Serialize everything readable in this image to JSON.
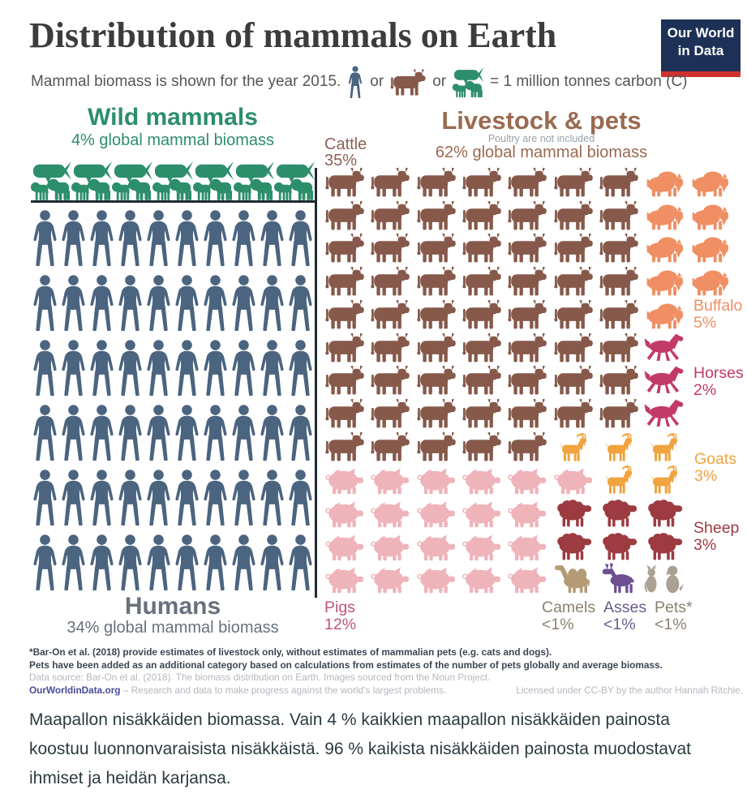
{
  "colors": {
    "title": "#3c3c3c",
    "subtitle_text": "#565656",
    "wild_green": "#2d8e6b",
    "human_blue": "#4b6480",
    "humans_gray": "#68717d",
    "livestock_brown": "#9a6a50",
    "cattle_label": "#8a6156",
    "note_gray": "#9aa0a6",
    "cow": "#86594a",
    "buffalo": "#f08f63",
    "horse": "#c23a68",
    "goat": "#f0a33e",
    "sheep": "#9c3b40",
    "pig": "#efb3ba",
    "pig_label": "#c05579",
    "camel": "#b49b76",
    "ass": "#6d4f92",
    "pets": "#aaa093",
    "muted_label": "#8b8174",
    "ass_label": "#6b5a8e",
    "logo_bg": "#1d3156",
    "logo_red": "#d0312d",
    "footnote_dark": "#3d4554",
    "footnote_light": "#b6b6bf",
    "owid_link": "#474b9b",
    "caption": "#2b3a40",
    "line": "#1f2a33"
  },
  "header": {
    "title": "Distribution of mammals on Earth",
    "logo_line1": "Our World",
    "logo_line2": "in Data",
    "subtitle_prefix": "Mammal biomass is shown for the year 2015.",
    "subtitle_or1": "or",
    "subtitle_or2": "or",
    "subtitle_suffix": "= 1 million tonnes carbon (C)"
  },
  "wild": {
    "title": "Wild mammals",
    "subtitle": "4% global mammal biomass",
    "units": 7
  },
  "humans": {
    "title": "Humans",
    "subtitle": "34% global mammal biomass",
    "rows": 6,
    "cols": 10
  },
  "livestock": {
    "title": "Livestock & pets",
    "note": "Poultry are not included",
    "subtitle": "62% global mammal biomass",
    "rows": [
      [
        "cow",
        "cow",
        "cow",
        "cow",
        "cow",
        "cow",
        "cow",
        "buffalo",
        "buffalo"
      ],
      [
        "cow",
        "cow",
        "cow",
        "cow",
        "cow",
        "cow",
        "cow",
        "buffalo",
        "buffalo"
      ],
      [
        "cow",
        "cow",
        "cow",
        "cow",
        "cow",
        "cow",
        "cow",
        "buffalo",
        "buffalo"
      ],
      [
        "cow",
        "cow",
        "cow",
        "cow",
        "cow",
        "cow",
        "cow",
        "buffalo",
        "buffalo"
      ],
      [
        "cow",
        "cow",
        "cow",
        "cow",
        "cow",
        "cow",
        "cow",
        "buffalo"
      ],
      [
        "cow",
        "cow",
        "cow",
        "cow",
        "cow",
        "cow",
        "cow",
        "horse"
      ],
      [
        "cow",
        "cow",
        "cow",
        "cow",
        "cow",
        "cow",
        "cow",
        "horse"
      ],
      [
        "cow",
        "cow",
        "cow",
        "cow",
        "cow",
        "cow",
        "cow",
        "horse"
      ],
      [
        "cow",
        "cow",
        "cow",
        "cow",
        "cow",
        "goat",
        "goat",
        "goat"
      ],
      [
        "pig",
        "pig",
        "pig",
        "pig",
        "pig",
        "pig",
        "goat",
        "goat"
      ],
      [
        "pig",
        "pig",
        "pig",
        "pig",
        "pig",
        "sheep",
        "sheep",
        "sheep"
      ],
      [
        "pig",
        "pig",
        "pig",
        "pig",
        "pig",
        "sheep",
        "sheep",
        "sheep"
      ],
      [
        "pig",
        "pig",
        "pig",
        "pig",
        "pig",
        "camel",
        "ass",
        "pets"
      ]
    ],
    "labels": {
      "cattle": {
        "text": "Cattle",
        "pct": "35%"
      },
      "buffalo": {
        "text": "Buffalo",
        "pct": "5%"
      },
      "horses": {
        "text": "Horses",
        "pct": "2%"
      },
      "goats": {
        "text": "Goats",
        "pct": "3%"
      },
      "sheep": {
        "text": "Sheep",
        "pct": "3%"
      },
      "pigs": {
        "text": "Pigs",
        "pct": "12%"
      },
      "camels": {
        "text": "Camels",
        "pct": "<1%"
      },
      "asses": {
        "text": "Asses",
        "pct": "<1%"
      },
      "pets": {
        "text": "Pets*",
        "pct": "<1%"
      }
    }
  },
  "chart_data": {
    "type": "pictogram",
    "title": "Distribution of mammals on Earth",
    "subtitle": "Mammal biomass is shown for the year 2015.",
    "unit_definition": "1 icon = 1 million tonnes carbon (C)",
    "groups": [
      {
        "name": "Wild mammals",
        "share_label": "4% global mammal biomass",
        "share_pct": 4,
        "icon_count": 7
      },
      {
        "name": "Humans",
        "share_label": "34% global mammal biomass",
        "share_pct": 34,
        "icon_count": 60
      },
      {
        "name": "Livestock & pets",
        "share_label": "62% global mammal biomass",
        "share_pct": 62,
        "note": "Poultry are not included",
        "icon_count": 108,
        "categories": [
          {
            "label": "Cattle",
            "pct_label": "35%",
            "icon_count": 61
          },
          {
            "label": "Buffalo",
            "pct_label": "5%",
            "icon_count": 9
          },
          {
            "label": "Horses",
            "pct_label": "2%",
            "icon_count": 3
          },
          {
            "label": "Goats",
            "pct_label": "3%",
            "icon_count": 5
          },
          {
            "label": "Sheep",
            "pct_label": "3%",
            "icon_count": 6
          },
          {
            "label": "Pigs",
            "pct_label": "12%",
            "icon_count": 21
          },
          {
            "label": "Camels",
            "pct_label": "<1%",
            "icon_count": 1
          },
          {
            "label": "Asses",
            "pct_label": "<1%",
            "icon_count": 1
          },
          {
            "label": "Pets*",
            "pct_label": "<1%",
            "icon_count": 1
          }
        ]
      }
    ]
  },
  "footer": {
    "note1": "*Bar-On et al. (2018) provide estimates of livestock only, without estimates of mammalian pets (e.g. cats and dogs).",
    "note2": "Pets have been added as an additional category based on calculations from estimates of the number of pets globally and average biomass.",
    "source": "Data source: Bar-On et al. (2018). The biomass distribution on Earth. Images sourced from the Noun Project.",
    "site": "OurWorldinData.org",
    "tagline": " – Research and data to make progress against the world's largest problems.",
    "license": "Licensed under CC-BY by the author Hannah Ritchie."
  },
  "caption": "Maapallon nisäkkäiden biomassa. Vain 4 % kaikkien maapallon nisäkkäiden painosta koostuu luonnonvaraisista nisäkkäistä. 96 % kaikista nisäkkäiden painosta muodostavat ihmiset ja heidän karjansa."
}
